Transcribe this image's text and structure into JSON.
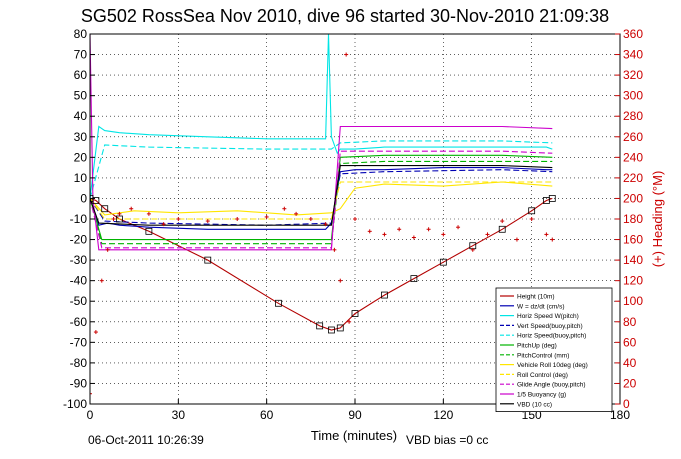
{
  "chart_data": {
    "type": "line",
    "title": "SG502 RossSea Nov 2010, dive 96 started 30-Nov-2010 21:09:38",
    "xlabel": "Time (minutes)",
    "ylabel_right": "(+) Heading (°M)",
    "xlim": [
      0,
      180
    ],
    "ylim": [
      -100,
      80
    ],
    "ylim_right": [
      0,
      360
    ],
    "x_ticks": [
      "0",
      "30",
      "60",
      "90",
      "120",
      "150",
      "180"
    ],
    "y_ticks": [
      "-100",
      "-90",
      "-80",
      "-70",
      "-60",
      "-50",
      "-40",
      "-30",
      "-20",
      "-10",
      "0",
      "10",
      "20",
      "30",
      "40",
      "50",
      "60",
      "70",
      "80"
    ],
    "y_ticks_right": [
      "0",
      "20",
      "40",
      "60",
      "80",
      "100",
      "120",
      "140",
      "160",
      "180",
      "200",
      "220",
      "240",
      "260",
      "280",
      "300",
      "320",
      "340",
      "360"
    ],
    "grid": true,
    "legend_position": "bottom-right",
    "footer_left": "06-Oct-2011 10:26:39",
    "footer_right": "VBD bias =0 cc",
    "series": [
      {
        "name": "Height (10m)",
        "color": "#b30000",
        "style": "solid",
        "x": [
          0,
          2,
          5,
          10,
          20,
          40,
          64,
          78,
          82,
          85,
          90,
          100,
          110,
          120,
          130,
          140,
          150,
          155,
          157
        ],
        "y": [
          0,
          -1,
          -5,
          -10,
          -16,
          -30,
          -51,
          -62,
          -64,
          -63,
          -56,
          -47,
          -39,
          -31,
          -23,
          -15,
          -6,
          -1,
          0
        ]
      },
      {
        "name": "W = dz/dt (cm/s)",
        "color": "#0000b3",
        "style": "solid",
        "x": [
          0,
          3,
          6,
          10,
          20,
          40,
          60,
          80,
          82,
          85,
          90,
          100,
          120,
          140,
          155,
          157
        ],
        "y": [
          0,
          -13,
          -12,
          -13,
          -14,
          -15,
          -15,
          -15,
          -12,
          13,
          14,
          14,
          15,
          15,
          14,
          14
        ]
      },
      {
        "name": "Horiz Speed W(pitch)",
        "color": "#00e5e5",
        "style": "solid",
        "x": [
          0,
          3,
          5,
          10,
          20,
          40,
          60,
          80,
          81,
          82,
          84,
          85,
          90,
          100,
          120,
          140,
          155,
          157
        ],
        "y": [
          0,
          35,
          33,
          32,
          31,
          30,
          29,
          29,
          80,
          30,
          22,
          24,
          24,
          25,
          25,
          25,
          25,
          24
        ]
      },
      {
        "name": "Vert Speed(buoy,pitch)",
        "color": "#0000b3",
        "style": "dashed",
        "x": [
          0,
          5,
          20,
          60,
          82,
          85,
          100,
          140,
          157
        ],
        "y": [
          0,
          -11,
          -12,
          -13,
          -12,
          12,
          13,
          14,
          13
        ]
      },
      {
        "name": "Horiz Speed(buoy,pitch)",
        "color": "#00e5e5",
        "style": "dashed",
        "x": [
          0,
          5,
          20,
          60,
          82,
          85,
          100,
          140,
          157
        ],
        "y": [
          0,
          26,
          25,
          24,
          24,
          27,
          28,
          28,
          27
        ]
      },
      {
        "name": "PitchUp (deg)",
        "color": "#00b300",
        "style": "solid",
        "x": [
          0,
          4,
          20,
          60,
          82,
          85,
          100,
          140,
          157
        ],
        "y": [
          0,
          -20,
          -20,
          -20,
          -20,
          20,
          21,
          21,
          20
        ]
      },
      {
        "name": "PitchControl (mm)",
        "color": "#00b300",
        "style": "dashed",
        "x": [
          0,
          4,
          20,
          60,
          82,
          85,
          100,
          140,
          157
        ],
        "y": [
          0,
          -22,
          -22,
          -22,
          -22,
          17,
          18,
          18,
          18
        ]
      },
      {
        "name": "Vehicle Roll 10deg (deg)",
        "color": "#ffe600",
        "style": "solid",
        "x": [
          0,
          5,
          15,
          30,
          50,
          70,
          82,
          85,
          90,
          100,
          120,
          140,
          157
        ],
        "y": [
          0,
          -8,
          -6,
          -7,
          -6,
          -8,
          -7,
          -5,
          5,
          7,
          6,
          8,
          6
        ]
      },
      {
        "name": "Roll Control (deg)",
        "color": "#ffe600",
        "style": "dashed",
        "x": [
          0,
          5,
          30,
          60,
          82,
          85,
          120,
          157
        ],
        "y": [
          0,
          -10,
          -10,
          -10,
          -10,
          8,
          8,
          8
        ]
      },
      {
        "name": "Glide Angle (buoy,pitch)",
        "color": "#cc00cc",
        "style": "dashed",
        "x": [
          0,
          4,
          20,
          60,
          82,
          85,
          100,
          140,
          157
        ],
        "y": [
          0,
          -24,
          -24,
          -24,
          -24,
          23,
          23,
          23,
          22
        ]
      },
      {
        "name": "1/5 Buoyancy (g)",
        "color": "#cc00cc",
        "style": "solid",
        "x": [
          0,
          1,
          3,
          20,
          60,
          82,
          85,
          100,
          140,
          157
        ],
        "y": [
          80,
          0,
          -25,
          -25,
          -25,
          -25,
          35,
          35,
          35,
          34
        ]
      },
      {
        "name": "VBD (10 cc)",
        "color": "#000000",
        "style": "solid",
        "x": [
          0,
          3,
          20,
          60,
          82,
          85,
          100,
          140,
          157
        ],
        "y": [
          0,
          -12,
          -13,
          -13,
          -13,
          16,
          16,
          16,
          15
        ]
      }
    ],
    "heading": {
      "name": "(+) Heading",
      "color": "#cc0000",
      "x": [
        0,
        2,
        4,
        6,
        8,
        10,
        14,
        20,
        25,
        30,
        40,
        50,
        60,
        66,
        70,
        75,
        80,
        83,
        85,
        87,
        88,
        90,
        95,
        100,
        105,
        110,
        115,
        120,
        125,
        130,
        135,
        140,
        145,
        150,
        155,
        157
      ],
      "y": [
        10,
        70,
        120,
        150,
        180,
        185,
        190,
        185,
        175,
        180,
        178,
        180,
        182,
        190,
        185,
        180,
        175,
        150,
        120,
        340,
        80,
        180,
        168,
        165,
        170,
        162,
        170,
        165,
        172,
        150,
        165,
        178,
        160,
        180,
        165,
        160
      ]
    }
  }
}
